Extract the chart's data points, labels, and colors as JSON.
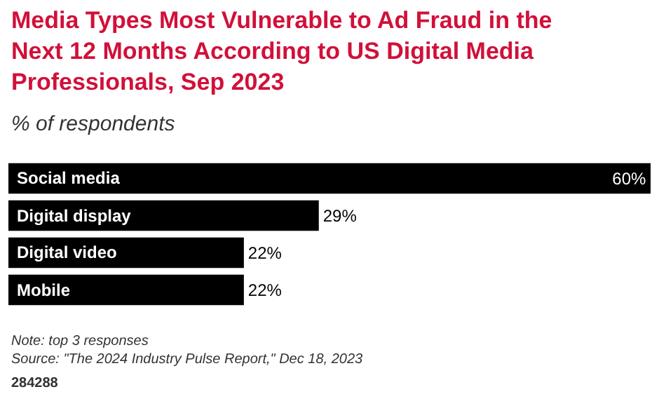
{
  "chart_data": {
    "type": "bar",
    "orientation": "horizontal",
    "title": "Media Types Most Vulnerable to Ad Fraud in the\nNext 12 Months According to US Digital Media\nProfessionals, Sep 2023",
    "subtitle": "% of respondents",
    "categories": [
      "Social media",
      "Digital display",
      "Digital video",
      "Mobile"
    ],
    "values": [
      60,
      29,
      22,
      22
    ],
    "value_labels": [
      "60%",
      "29%",
      "22%",
      "22%"
    ],
    "color": "#000000",
    "xlim": [
      0,
      60
    ],
    "annotations": [
      "Note: top 3 responses\nSource: \"The 2024 Industry Pulse Report,\" Dec 18, 2023",
      "284288"
    ]
  }
}
